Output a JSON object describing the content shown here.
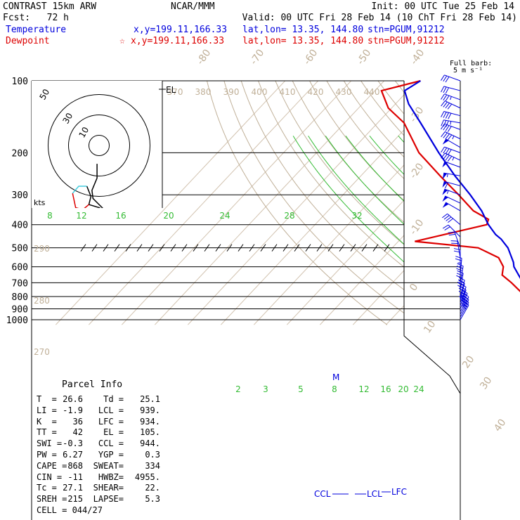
{
  "header": {
    "left1": "CONTRAST 15km ARW",
    "left2": "Fcst:   72 h",
    "center1": "NCAR/MMM",
    "init": "Init: 00 UTC Tue 25 Feb 14",
    "valid": "Valid: 00 UTC Fri 28 Feb 14 (10 ChT Fri 28 Feb 14)",
    "temp_label": "Temperature",
    "temp_xy": "x,y=199.11,166.33",
    "temp_latlon": "lat,lon= 13.35, 144.80",
    "temp_stn": "stn=PGUM,91212",
    "dew_label": "Dewpoint",
    "dew_xy": "x,y=199.11,166.33",
    "dew_latlon": "lat,lon= 13.35, 144.80",
    "dew_stn": "stn=PGUM,91212",
    "star": "☆"
  },
  "colors": {
    "temperature": "#0000dd",
    "dewpoint": "#dd0000",
    "isotherm": "#d2c3b0",
    "dry_adiabat": "#c0b098",
    "moist_adiabat": "#33bb33",
    "mixing_ratio": "#33bb33",
    "hodo_blue": "#000000",
    "hodo_cyan": "#44ccdd",
    "hodo_red": "#dd0000"
  },
  "barb_header": {
    "line1": "Full barb:",
    "line2": "5 m s⁻¹"
  },
  "parcel_info": {
    "title": "Parcel Info",
    "rows": [
      [
        "T  =",
        "26.6",
        "Td =",
        "25.1"
      ],
      [
        "LI =",
        "-1.9",
        "LCL =",
        "939."
      ],
      [
        "K  =",
        "36",
        "LFC =",
        "934."
      ],
      [
        "TT =",
        "42",
        "EL =",
        "105."
      ],
      [
        "SWI =",
        "-0.3",
        "CCL =",
        "944."
      ],
      [
        "PW =",
        "6.27",
        "YGP =",
        "0.3"
      ],
      [
        "CAPE =",
        "868",
        "SWEAT=",
        "334"
      ],
      [
        "CIN =",
        "-11",
        "HWBZ=",
        "4955."
      ],
      [
        "Tc =",
        "27.1",
        "SHEAR=",
        "22."
      ],
      [
        "SREH =",
        "215",
        "LAPSE=",
        "5.3"
      ],
      [
        "CELL =",
        "044/27",
        "",
        ""
      ]
    ]
  },
  "chart_data": {
    "type": "skew-t log-p sounding",
    "pressure_levels": [
      100,
      200,
      300,
      400,
      500,
      600,
      700,
      800,
      900,
      1000
    ],
    "pressure_labels": [
      "100",
      "200",
      "300",
      "400",
      "500",
      "600",
      "700",
      "800",
      "900",
      "1000"
    ],
    "isotherm_labels": [
      "-80",
      "-70",
      "-60",
      "-50",
      "-40",
      "-30",
      "-20",
      "-10",
      "0",
      "10",
      "20",
      "30",
      "40"
    ],
    "isotherm_temps": [
      -80,
      -70,
      -60,
      -50,
      -40,
      -30,
      -20,
      -10,
      0,
      10,
      20,
      30,
      40
    ],
    "theta_labels": [
      "370",
      "380",
      "390",
      "400",
      "410",
      "420",
      "430",
      "440"
    ],
    "theta_values": [
      370,
      380,
      390,
      400,
      410,
      420,
      430,
      440
    ],
    "dry_adiabat_labels": [
      "290",
      "280",
      "270"
    ],
    "dry_adiabat_values": [
      290,
      280,
      270
    ],
    "moist_labels": [
      "8",
      "12",
      "16",
      "20",
      "24",
      "28",
      "32"
    ],
    "moist_values": [
      8,
      12,
      16,
      20,
      24,
      28,
      32
    ],
    "mixing_ratio_labels": [
      "2",
      "3",
      "5",
      "8",
      "12",
      "16",
      "20",
      "24"
    ],
    "mixing_ratio_values": [
      2,
      3,
      5,
      8,
      12,
      16,
      20,
      24
    ],
    "temperature": {
      "name": "Temperature",
      "p": [
        992,
        960,
        939,
        900,
        850,
        800,
        700,
        600,
        575,
        500,
        460,
        440,
        400,
        350,
        300,
        250,
        200,
        150,
        125,
        110,
        100
      ],
      "t": [
        26.6,
        24.5,
        23.3,
        21.8,
        19.0,
        16.0,
        9.5,
        2.2,
        0.8,
        -5.0,
        -9.5,
        -12.5,
        -17.5,
        -23.5,
        -31.5,
        -41.5,
        -53.0,
        -67.0,
        -76.0,
        -81.0,
        -79.0
      ]
    },
    "dewpoint": {
      "name": "Dewpoint",
      "p": [
        992,
        960,
        939,
        900,
        850,
        800,
        700,
        650,
        600,
        550,
        500,
        470,
        400,
        380,
        350,
        300,
        250,
        200,
        150,
        130,
        110,
        100
      ],
      "t": [
        25.1,
        23.5,
        22.6,
        20.8,
        17.5,
        14.2,
        6.0,
        1.0,
        -1.0,
        -5.0,
        -14.0,
        -35.0,
        -18.0,
        -19.0,
        -26.0,
        -35.0,
        -46.0,
        -59.0,
        -72.0,
        -81.0,
        -88.0,
        -79.0
      ]
    },
    "annotations": [
      "EL",
      "M",
      "CCL",
      "LCL",
      "LFC",
      "kts"
    ],
    "hodograph_rings": [
      "10",
      "30",
      "50"
    ],
    "hodograph_ring_values": [
      10,
      30,
      50
    ],
    "hodograph": {
      "blue": [
        [
          -2,
          -18
        ],
        [
          -2,
          -32
        ],
        [
          -7,
          -44
        ],
        [
          -6,
          -52
        ],
        [
          2,
          -60
        ],
        [
          8,
          -66
        ],
        [
          0,
          -61
        ],
        [
          -10,
          -58
        ],
        [
          -8,
          -50
        ],
        [
          -12,
          -40
        ]
      ],
      "cyan": [
        [
          -12,
          -40
        ],
        [
          -20,
          -40
        ],
        [
          -26,
          -47
        ]
      ],
      "red": [
        [
          -26,
          -47
        ],
        [
          -23,
          -61
        ],
        [
          -16,
          -63
        ],
        [
          -10,
          -58
        ]
      ]
    },
    "wind_barbs": {
      "p": [
        100,
        110,
        120,
        130,
        140,
        150,
        160,
        175,
        190,
        200,
        215,
        230,
        250,
        275,
        300,
        325,
        350,
        400,
        450,
        500,
        550,
        600,
        650,
        700,
        750,
        800,
        825,
        850,
        875,
        900,
        925,
        950,
        975,
        1000
      ],
      "dir": [
        250,
        255,
        250,
        245,
        255,
        260,
        250,
        245,
        240,
        250,
        245,
        250,
        260,
        255,
        250,
        245,
        240,
        230,
        225,
        200,
        190,
        180,
        175,
        170,
        170,
        165,
        165,
        160,
        160,
        155,
        150,
        150,
        150,
        150
      ],
      "spd_ms": [
        15,
        17,
        19,
        22,
        20,
        18,
        21,
        23,
        25,
        22,
        24,
        26,
        28,
        30,
        28,
        27,
        25,
        20,
        12,
        10,
        10,
        12,
        13,
        15,
        17,
        18,
        17,
        16,
        18,
        20,
        21,
        19,
        17,
        15
      ]
    }
  }
}
